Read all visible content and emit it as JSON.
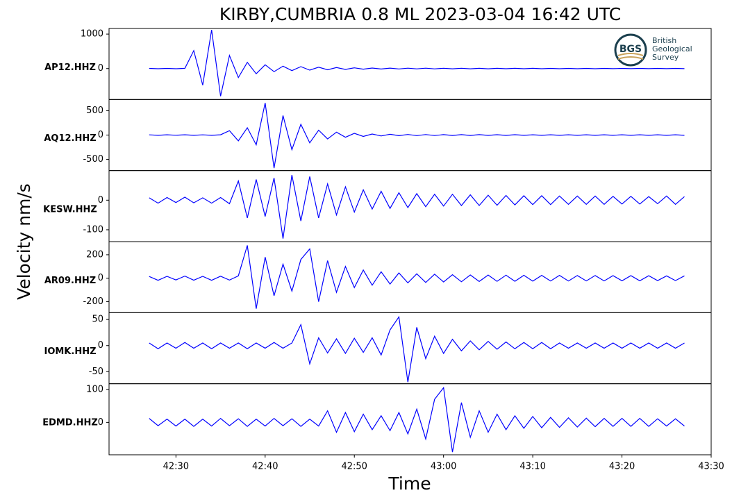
{
  "title": "KIRBY,CUMBRIA 0.8 ML   2023-03-04 16:42 UTC",
  "ylabel": "Velocity nm/s",
  "xlabel": "Time",
  "logo": {
    "initials": "BGS",
    "lines": [
      "British",
      "Geological",
      "Survey"
    ]
  },
  "chart_data": [
    {
      "type": "line",
      "label": "AP12.HHZ",
      "color": "#0000ff",
      "xlim": [
        22.5,
        90
      ],
      "ylim": [
        -898,
        1163
      ],
      "yticks": [
        0,
        1000
      ],
      "x": [
        27,
        28,
        29,
        30,
        31,
        32,
        33,
        34,
        35,
        36,
        37,
        38,
        39,
        40,
        41,
        42,
        43,
        44,
        45,
        46,
        47,
        48,
        49,
        50,
        51,
        52,
        53,
        54,
        55,
        56,
        57,
        58,
        59,
        60,
        61,
        62,
        63,
        64,
        65,
        66,
        67,
        68,
        69,
        70,
        71,
        72,
        73,
        74,
        75,
        76,
        77,
        78,
        79,
        80,
        81,
        82,
        83,
        84,
        85,
        86,
        87
      ],
      "values": [
        5,
        -6,
        4,
        -5,
        6,
        520,
        -480,
        1120,
        -800,
        380,
        -260,
        180,
        -150,
        110,
        -90,
        70,
        -60,
        55,
        -45,
        40,
        -35,
        30,
        -25,
        22,
        -18,
        16,
        -14,
        13,
        -12,
        11,
        -10,
        10,
        -9,
        9,
        -8,
        8,
        -8,
        7,
        -7,
        7,
        -6,
        6,
        -6,
        6,
        -5,
        5,
        -5,
        5,
        -5,
        5,
        -5,
        5,
        -4,
        4,
        -4,
        4,
        -4,
        4,
        -4,
        4,
        -4
      ]
    },
    {
      "type": "line",
      "label": "AQ12.HHZ",
      "color": "#0000ff",
      "xlim": [
        22.5,
        90
      ],
      "ylim": [
        -729,
        729
      ],
      "yticks": [
        -500,
        0,
        500
      ],
      "x": [
        27,
        28,
        29,
        30,
        31,
        32,
        33,
        34,
        35,
        36,
        37,
        38,
        39,
        40,
        41,
        42,
        43,
        44,
        45,
        46,
        47,
        48,
        49,
        50,
        51,
        52,
        53,
        54,
        55,
        56,
        57,
        58,
        59,
        60,
        61,
        62,
        63,
        64,
        65,
        66,
        67,
        68,
        69,
        70,
        71,
        72,
        73,
        74,
        75,
        76,
        77,
        78,
        79,
        80,
        81,
        82,
        83,
        84,
        85,
        86,
        87
      ],
      "values": [
        4,
        -5,
        5,
        -4,
        5,
        -5,
        4,
        -5,
        6,
        90,
        -120,
        150,
        -200,
        660,
        -680,
        400,
        -300,
        220,
        -160,
        100,
        -80,
        60,
        -45,
        35,
        -28,
        22,
        -18,
        15,
        -13,
        12,
        -11,
        10,
        -10,
        9,
        -9,
        8,
        -8,
        8,
        -7,
        7,
        -7,
        7,
        -6,
        6,
        -6,
        6,
        -6,
        6,
        -5,
        5,
        -5,
        5,
        -5,
        5,
        -5,
        5,
        -5,
        5,
        -5,
        5,
        -5
      ]
    },
    {
      "type": "line",
      "label": "KESW.HHZ",
      "color": "#0000ff",
      "xlim": [
        22.5,
        90
      ],
      "ylim": [
        -140,
        100
      ],
      "yticks": [
        -100,
        0
      ],
      "x": [
        27,
        28,
        29,
        30,
        31,
        32,
        33,
        34,
        35,
        36,
        37,
        38,
        39,
        40,
        41,
        42,
        43,
        44,
        45,
        46,
        47,
        48,
        49,
        50,
        51,
        52,
        53,
        54,
        55,
        56,
        57,
        58,
        59,
        60,
        61,
        62,
        63,
        64,
        65,
        66,
        67,
        68,
        69,
        70,
        71,
        72,
        73,
        74,
        75,
        76,
        77,
        78,
        79,
        80,
        81,
        82,
        83,
        84,
        85,
        86,
        87
      ],
      "values": [
        8,
        -10,
        9,
        -8,
        10,
        -9,
        8,
        -10,
        9,
        -12,
        65,
        -60,
        70,
        -55,
        75,
        -130,
        85,
        -70,
        80,
        -60,
        55,
        -50,
        45,
        -40,
        35,
        -30,
        30,
        -28,
        25,
        -25,
        22,
        -22,
        20,
        -20,
        20,
        -18,
        18,
        -18,
        17,
        -17,
        16,
        -16,
        15,
        -15,
        15,
        -15,
        14,
        -14,
        14,
        -14,
        14,
        -14,
        13,
        -13,
        13,
        -13,
        12,
        -12,
        14,
        -14,
        12
      ]
    },
    {
      "type": "line",
      "label": "AR09.HHZ",
      "color": "#0000ff",
      "xlim": [
        22.5,
        90
      ],
      "ylim": [
        -294,
        312
      ],
      "yticks": [
        -200,
        0,
        200
      ],
      "x": [
        27,
        28,
        29,
        30,
        31,
        32,
        33,
        34,
        35,
        36,
        37,
        38,
        39,
        40,
        41,
        42,
        43,
        44,
        45,
        46,
        47,
        48,
        49,
        50,
        51,
        52,
        53,
        54,
        55,
        56,
        57,
        58,
        59,
        60,
        61,
        62,
        63,
        64,
        65,
        66,
        67,
        68,
        69,
        70,
        71,
        72,
        73,
        74,
        75,
        76,
        77,
        78,
        79,
        80,
        81,
        82,
        83,
        84,
        85,
        86,
        87
      ],
      "values": [
        15,
        -18,
        16,
        -15,
        18,
        -17,
        16,
        -18,
        17,
        -16,
        20,
        280,
        -260,
        180,
        -150,
        120,
        -110,
        160,
        250,
        -200,
        150,
        -120,
        100,
        -80,
        70,
        -60,
        55,
        -50,
        45,
        -40,
        38,
        -36,
        34,
        -32,
        30,
        -30,
        28,
        -28,
        27,
        -27,
        26,
        -26,
        25,
        -25,
        24,
        -24,
        24,
        -24,
        23,
        -23,
        23,
        -23,
        22,
        -22,
        22,
        -22,
        21,
        -21,
        20,
        -20,
        20
      ]
    },
    {
      "type": "line",
      "label": "IOMK.HHZ",
      "color": "#0000ff",
      "xlim": [
        22.5,
        90
      ],
      "ylim": [
        -73,
        63
      ],
      "yticks": [
        -50,
        0,
        50
      ],
      "x": [
        27,
        28,
        29,
        30,
        31,
        32,
        33,
        34,
        35,
        36,
        37,
        38,
        39,
        40,
        41,
        42,
        43,
        44,
        45,
        46,
        47,
        48,
        49,
        50,
        51,
        52,
        53,
        54,
        55,
        56,
        57,
        58,
        59,
        60,
        61,
        62,
        63,
        64,
        65,
        66,
        67,
        68,
        69,
        70,
        71,
        72,
        73,
        74,
        75,
        76,
        77,
        78,
        79,
        80,
        81,
        82,
        83,
        84,
        85,
        86,
        87
      ],
      "values": [
        5,
        -6,
        5,
        -5,
        6,
        -5,
        5,
        -6,
        5,
        -5,
        5,
        -6,
        5,
        -5,
        6,
        -5,
        5,
        40,
        -35,
        15,
        -14,
        13,
        -15,
        14,
        -13,
        15,
        -18,
        30,
        55,
        -70,
        35,
        -25,
        18,
        -15,
        12,
        -10,
        9,
        -8,
        8,
        -7,
        7,
        -6,
        6,
        -6,
        6,
        -6,
        5,
        -5,
        5,
        -5,
        5,
        -5,
        5,
        -5,
        5,
        -5,
        5,
        -5,
        5,
        -5,
        5
      ]
    },
    {
      "type": "line",
      "label": "EDMD.HHZ",
      "color": "#0000ff",
      "xlim": [
        22.5,
        90
      ],
      "ylim": [
        -98,
        117
      ],
      "yticks": [
        0,
        100
      ],
      "xticks": [
        {
          "value": 30,
          "label": "42:30"
        },
        {
          "value": 40,
          "label": "42:40"
        },
        {
          "value": 50,
          "label": "42:50"
        },
        {
          "value": 60,
          "label": "43:00"
        },
        {
          "value": 70,
          "label": "43:10"
        },
        {
          "value": 80,
          "label": "43:20"
        },
        {
          "value": 90,
          "label": "43:30"
        }
      ],
      "x": [
        27,
        28,
        29,
        30,
        31,
        32,
        33,
        34,
        35,
        36,
        37,
        38,
        39,
        40,
        41,
        42,
        43,
        44,
        45,
        46,
        47,
        48,
        49,
        50,
        51,
        52,
        53,
        54,
        55,
        56,
        57,
        58,
        59,
        60,
        61,
        62,
        63,
        64,
        65,
        66,
        67,
        68,
        69,
        70,
        71,
        72,
        73,
        74,
        75,
        76,
        77,
        78,
        79,
        80,
        81,
        82,
        83,
        84,
        85,
        86,
        87
      ],
      "values": [
        12,
        -10,
        10,
        -11,
        10,
        -12,
        10,
        -11,
        12,
        -10,
        11,
        -12,
        10,
        -11,
        12,
        -10,
        11,
        -12,
        10,
        -11,
        35,
        -30,
        30,
        -28,
        25,
        -22,
        20,
        -25,
        30,
        -35,
        40,
        -50,
        70,
        105,
        -90,
        60,
        -45,
        35,
        -30,
        25,
        -22,
        20,
        -18,
        18,
        -16,
        15,
        -15,
        14,
        -14,
        13,
        -13,
        12,
        -12,
        12,
        -12,
        12,
        -12,
        11,
        -11,
        11,
        -11
      ]
    }
  ]
}
